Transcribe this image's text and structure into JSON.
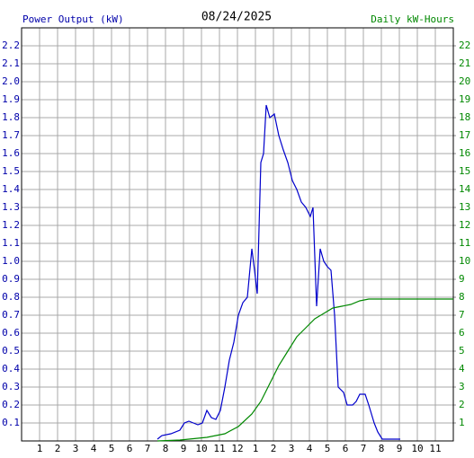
{
  "chart_data": {
    "type": "line",
    "title": "08/24/2025",
    "y_label": "Power Output (kW)",
    "y2_label": "Daily kW-Hours",
    "xlim": [
      0,
      24
    ],
    "xticks": [
      1,
      2,
      3,
      4,
      5,
      6,
      7,
      8,
      9,
      10,
      11,
      12,
      {
        "value": 13,
        "label": "1"
      },
      {
        "value": 14,
        "label": "2"
      },
      {
        "value": 15,
        "label": "3"
      },
      {
        "value": 16,
        "label": "4"
      },
      {
        "value": 17,
        "label": "5"
      },
      {
        "value": 18,
        "label": "6"
      },
      {
        "value": 19,
        "label": "7"
      },
      {
        "value": 20,
        "label": "8"
      },
      {
        "value": 21,
        "label": "9"
      },
      {
        "value": 22,
        "label": "10"
      },
      {
        "value": 23,
        "label": "11"
      }
    ],
    "ylim": [
      0,
      2.3
    ],
    "yticks": [
      0.1,
      0.2,
      0.3,
      0.4,
      0.5,
      0.6,
      0.7,
      0.8,
      0.9,
      {
        "value": 1,
        "label": "1.0"
      },
      1.1,
      1.2,
      1.3,
      1.4,
      1.5,
      1.6,
      1.7,
      1.8,
      1.9,
      {
        "value": 2,
        "label": "2.0"
      },
      2.1,
      2.2
    ],
    "y2lim": [
      0,
      23
    ],
    "y2ticks": [
      1,
      2,
      3,
      4,
      5,
      6,
      7,
      8,
      9,
      10,
      11,
      12,
      13,
      14,
      15,
      16,
      17,
      18,
      19,
      20,
      21,
      22
    ],
    "grid": true,
    "y_label_color": "#0000aa",
    "y2_label_color": "#008800",
    "series": [
      {
        "name": "Power Output (kW)",
        "color": "#0000cc",
        "x": [
          7.55,
          7.8,
          8.3,
          8.8,
          9.05,
          9.3,
          9.55,
          9.8,
          10.05,
          10.3,
          10.55,
          10.8,
          11.05,
          11.3,
          11.55,
          11.8,
          12.05,
          12.3,
          12.55,
          12.8,
          12.95,
          13.1,
          13.3,
          13.45,
          13.6,
          13.8,
          14.05,
          14.3,
          14.55,
          14.8,
          15.05,
          15.3,
          15.55,
          15.8,
          16.05,
          16.2,
          16.4,
          16.6,
          16.8,
          17.0,
          17.2,
          17.4,
          17.6,
          17.9,
          18.1,
          18.4,
          18.6,
          18.8,
          19.1,
          19.3,
          19.6,
          19.8,
          20.05,
          21.05
        ],
        "values": [
          0.01,
          0.03,
          0.04,
          0.06,
          0.1,
          0.11,
          0.1,
          0.09,
          0.1,
          0.17,
          0.13,
          0.12,
          0.17,
          0.3,
          0.45,
          0.55,
          0.7,
          0.77,
          0.8,
          1.07,
          0.95,
          0.82,
          1.55,
          1.6,
          1.87,
          1.8,
          1.82,
          1.7,
          1.62,
          1.55,
          1.45,
          1.4,
          1.33,
          1.3,
          1.25,
          1.3,
          0.75,
          1.07,
          1.0,
          0.97,
          0.95,
          0.7,
          0.3,
          0.27,
          0.2,
          0.2,
          0.22,
          0.26,
          0.26,
          0.2,
          0.1,
          0.05,
          0.01,
          0.01
        ]
      },
      {
        "name": "Daily kW-Hours",
        "color": "#008800",
        "axis": "y2",
        "x": [
          7.55,
          8.8,
          10.3,
          11.3,
          12.05,
          12.8,
          13.3,
          13.8,
          14.3,
          14.8,
          15.3,
          15.8,
          16.3,
          16.8,
          17.3,
          17.8,
          18.3,
          18.8,
          19.3,
          19.8,
          24
        ],
        "values": [
          0,
          0.05,
          0.2,
          0.4,
          0.8,
          1.5,
          2.2,
          3.2,
          4.2,
          5.0,
          5.8,
          6.3,
          6.8,
          7.1,
          7.4,
          7.5,
          7.6,
          7.8,
          7.9,
          7.9,
          7.9
        ]
      }
    ]
  }
}
